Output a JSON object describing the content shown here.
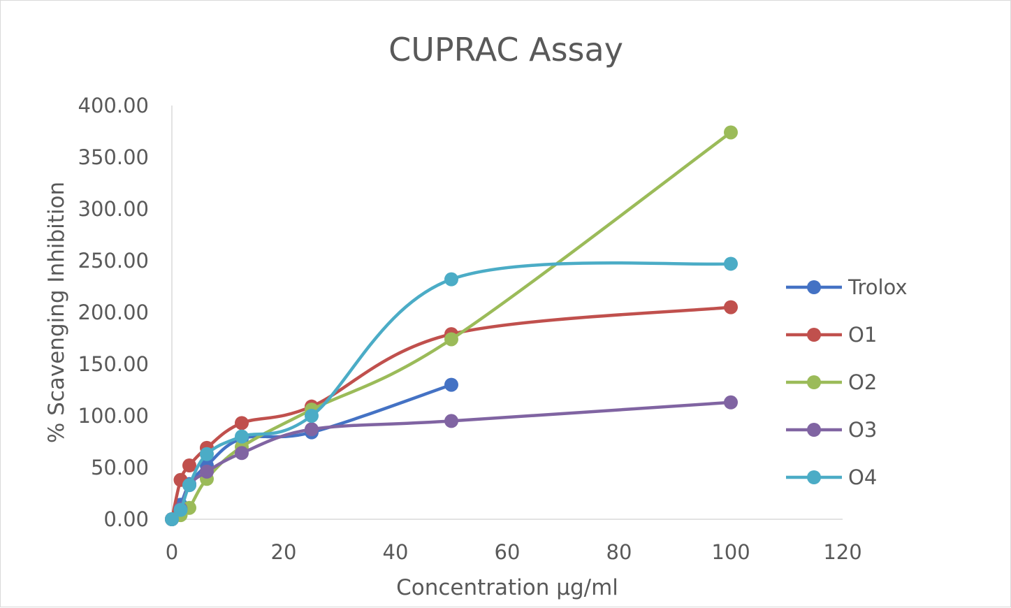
{
  "chart_data": {
    "type": "scatter",
    "title": "CUPRAC Assay",
    "xlabel": "Concentration  μg/ml",
    "ylabel": "% Scavenging Inhibition",
    "xlim": [
      0,
      120
    ],
    "ylim": [
      0,
      400
    ],
    "x_ticks": [
      "0",
      "20",
      "40",
      "60",
      "80",
      "100",
      "120"
    ],
    "y_ticks": [
      "0.00",
      "50.00",
      "100.00",
      "150.00",
      "200.00",
      "250.00",
      "300.00",
      "350.00",
      "400.00"
    ],
    "grid": false,
    "smooth_lines": true,
    "legend_position": "right",
    "series": [
      {
        "name": "Trolox",
        "color": "#4472C4",
        "x": [
          0,
          1.5625,
          3.125,
          6.25,
          12.5,
          25,
          50
        ],
        "y": [
          0,
          14,
          34,
          52,
          78,
          84,
          130
        ]
      },
      {
        "name": "O1",
        "color": "#C0504D",
        "x": [
          0,
          1.5625,
          3.125,
          6.25,
          12.5,
          25,
          50,
          100
        ],
        "y": [
          0,
          38,
          52,
          69,
          93,
          109,
          179,
          205
        ]
      },
      {
        "name": "O2",
        "color": "#9BBB59",
        "x": [
          0,
          1.5625,
          3.125,
          6.25,
          12.5,
          25,
          50,
          100
        ],
        "y": [
          0,
          4,
          11,
          39,
          70,
          106,
          174,
          374
        ]
      },
      {
        "name": "O3",
        "color": "#8064A2",
        "x": [
          0,
          1.5625,
          3.125,
          6.25,
          12.5,
          25,
          50,
          100
        ],
        "y": [
          0,
          10,
          33,
          46,
          64,
          87,
          95,
          113
        ]
      },
      {
        "name": "O4",
        "color": "#4BACC6",
        "x": [
          0,
          1.5625,
          3.125,
          6.25,
          12.5,
          25,
          50,
          100
        ],
        "y": [
          0,
          9,
          33,
          63,
          80,
          100,
          232,
          247
        ]
      }
    ]
  }
}
